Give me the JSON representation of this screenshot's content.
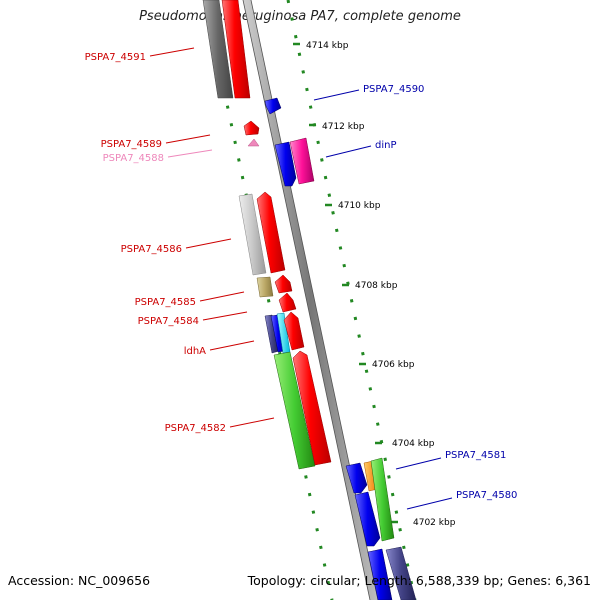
{
  "title": "Pseudomonas aeruginosa PA7, complete genome",
  "footer": {
    "accession": "Accession: NC_009656",
    "summary": "Topology: circular; Length: 6,588,339 bp; Genes: 6,361"
  },
  "colors": {
    "forward_label": "#cc0000",
    "reverse_label": "#0000aa",
    "rna_label": "#ee88bb",
    "backbone": "#888888",
    "tick": "#228822"
  },
  "ruler": [
    {
      "label": "4714 kbp"
    },
    {
      "label": "4712 kbp"
    },
    {
      "label": "4710 kbp"
    },
    {
      "label": "4708 kbp"
    },
    {
      "label": "4706 kbp"
    },
    {
      "label": "4704 kbp"
    },
    {
      "label": "4702 kbp"
    }
  ],
  "gene_labels": [
    {
      "text": "PSPA7_4591",
      "strand": "forward"
    },
    {
      "text": "PSPA7_4590",
      "strand": "reverse"
    },
    {
      "text": "PSPA7_4589",
      "strand": "forward"
    },
    {
      "text": "PSPA7_4588",
      "strand": "rna"
    },
    {
      "text": "dinP",
      "strand": "reverse"
    },
    {
      "text": "PSPA7_4586",
      "strand": "forward"
    },
    {
      "text": "PSPA7_4585",
      "strand": "forward"
    },
    {
      "text": "PSPA7_4584",
      "strand": "forward"
    },
    {
      "text": "ldhA",
      "strand": "forward"
    },
    {
      "text": "PSPA7_4582",
      "strand": "forward"
    },
    {
      "text": "PSPA7_4581",
      "strand": "reverse"
    },
    {
      "text": "PSPA7_4580",
      "strand": "reverse"
    }
  ]
}
